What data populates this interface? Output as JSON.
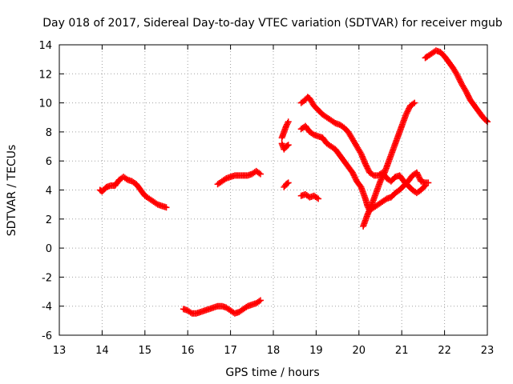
{
  "chart_data": {
    "type": "scatter",
    "title": "Day 018 of 2017, Sidereal Day-to-day VTEC variation (SDTVAR) for receiver mgub",
    "xlabel": "GPS time / hours",
    "ylabel": "SDTVAR / TECUs",
    "xlim": [
      13,
      23
    ],
    "ylim": [
      -6,
      14
    ],
    "xticks": [
      "13",
      "14",
      "15",
      "16",
      "17",
      "18",
      "19",
      "20",
      "21",
      "22",
      "23"
    ],
    "yticks": [
      "-6",
      "-4",
      "-2",
      "0",
      "2",
      "4",
      "6",
      "8",
      "10",
      "12",
      "14"
    ],
    "grid": "dotted",
    "marker": "+",
    "color": "#ff0000",
    "series": [
      {
        "points": [
          [
            13.95,
            4.0
          ],
          [
            14.0,
            3.9
          ],
          [
            14.1,
            4.2
          ],
          [
            14.2,
            4.3
          ],
          [
            14.3,
            4.3
          ],
          [
            14.4,
            4.7
          ],
          [
            14.5,
            4.9
          ],
          [
            14.6,
            4.7
          ],
          [
            14.7,
            4.6
          ],
          [
            14.8,
            4.4
          ],
          [
            14.9,
            4.0
          ],
          [
            15.0,
            3.6
          ],
          [
            15.1,
            3.4
          ],
          [
            15.2,
            3.2
          ],
          [
            15.3,
            3.0
          ],
          [
            15.4,
            2.9
          ],
          [
            15.5,
            2.8
          ]
        ]
      },
      {
        "points": [
          [
            15.9,
            -4.2
          ],
          [
            16.0,
            -4.3
          ],
          [
            16.1,
            -4.5
          ],
          [
            16.2,
            -4.5
          ],
          [
            16.3,
            -4.4
          ],
          [
            16.4,
            -4.3
          ],
          [
            16.5,
            -4.2
          ],
          [
            16.6,
            -4.1
          ],
          [
            16.7,
            -4.0
          ],
          [
            16.8,
            -4.0
          ],
          [
            16.9,
            -4.1
          ],
          [
            17.0,
            -4.3
          ],
          [
            17.1,
            -4.5
          ],
          [
            17.2,
            -4.4
          ],
          [
            17.3,
            -4.2
          ],
          [
            17.4,
            -4.0
          ],
          [
            17.5,
            -3.9
          ],
          [
            17.6,
            -3.8
          ],
          [
            17.7,
            -3.6
          ]
        ]
      },
      {
        "points": [
          [
            16.7,
            4.4
          ],
          [
            16.8,
            4.6
          ],
          [
            16.9,
            4.8
          ],
          [
            17.0,
            4.9
          ],
          [
            17.1,
            5.0
          ],
          [
            17.2,
            5.0
          ],
          [
            17.3,
            5.0
          ],
          [
            17.4,
            5.0
          ],
          [
            17.5,
            5.1
          ],
          [
            17.6,
            5.3
          ],
          [
            17.7,
            5.1
          ]
        ]
      },
      {
        "points": [
          [
            18.2,
            7.2
          ],
          [
            18.25,
            6.8
          ],
          [
            18.3,
            7.0
          ],
          [
            18.35,
            7.1
          ]
        ]
      },
      {
        "points": [
          [
            18.2,
            7.6
          ],
          [
            18.25,
            8.0
          ],
          [
            18.3,
            8.4
          ],
          [
            18.35,
            8.7
          ]
        ]
      },
      {
        "points": [
          [
            18.25,
            4.2
          ],
          [
            18.3,
            4.4
          ],
          [
            18.35,
            4.5
          ]
        ]
      },
      {
        "points": [
          [
            18.65,
            3.6
          ],
          [
            18.75,
            3.7
          ],
          [
            18.85,
            3.5
          ],
          [
            18.95,
            3.6
          ],
          [
            19.05,
            3.4
          ]
        ]
      },
      {
        "points": [
          [
            18.65,
            8.2
          ],
          [
            18.75,
            8.4
          ],
          [
            18.85,
            8.0
          ],
          [
            18.95,
            7.8
          ],
          [
            19.05,
            7.7
          ],
          [
            19.15,
            7.6
          ],
          [
            19.25,
            7.2
          ],
          [
            19.35,
            7.0
          ],
          [
            19.45,
            6.8
          ],
          [
            19.55,
            6.4
          ],
          [
            19.65,
            6.0
          ],
          [
            19.75,
            5.6
          ],
          [
            19.85,
            5.2
          ],
          [
            19.95,
            4.6
          ],
          [
            20.05,
            4.2
          ],
          [
            20.15,
            3.4
          ],
          [
            20.2,
            2.9
          ],
          [
            20.25,
            2.6
          ],
          [
            20.35,
            2.8
          ],
          [
            20.45,
            3.0
          ],
          [
            20.55,
            3.2
          ],
          [
            20.65,
            3.4
          ],
          [
            20.75,
            3.5
          ],
          [
            20.85,
            3.8
          ],
          [
            20.95,
            4.0
          ],
          [
            21.05,
            4.3
          ],
          [
            21.15,
            4.6
          ],
          [
            21.25,
            5.0
          ],
          [
            21.35,
            5.2
          ],
          [
            21.45,
            4.6
          ],
          [
            21.55,
            4.5
          ],
          [
            21.62,
            4.5
          ]
        ]
      },
      {
        "points": [
          [
            18.65,
            10.0
          ],
          [
            18.75,
            10.2
          ],
          [
            18.8,
            10.4
          ],
          [
            18.85,
            10.3
          ],
          [
            18.95,
            9.8
          ],
          [
            19.05,
            9.5
          ],
          [
            19.15,
            9.2
          ],
          [
            19.25,
            9.0
          ],
          [
            19.35,
            8.8
          ],
          [
            19.45,
            8.6
          ],
          [
            19.55,
            8.5
          ],
          [
            19.65,
            8.3
          ],
          [
            19.75,
            8.0
          ],
          [
            19.85,
            7.5
          ],
          [
            19.95,
            7.0
          ],
          [
            20.05,
            6.5
          ],
          [
            20.15,
            5.8
          ],
          [
            20.25,
            5.2
          ],
          [
            20.35,
            5.0
          ],
          [
            20.45,
            5.0
          ],
          [
            20.55,
            5.2
          ],
          [
            20.65,
            4.8
          ],
          [
            20.75,
            4.6
          ],
          [
            20.85,
            4.9
          ],
          [
            20.95,
            5.0
          ],
          [
            21.05,
            4.6
          ],
          [
            21.15,
            4.3
          ],
          [
            21.25,
            4.0
          ],
          [
            21.35,
            3.8
          ],
          [
            21.45,
            4.0
          ],
          [
            21.55,
            4.3
          ]
        ]
      },
      {
        "points": [
          [
            20.1,
            1.5
          ],
          [
            20.2,
            2.3
          ],
          [
            20.3,
            3.0
          ],
          [
            20.4,
            3.8
          ],
          [
            20.5,
            4.6
          ],
          [
            20.6,
            5.2
          ],
          [
            20.7,
            6.0
          ],
          [
            20.8,
            6.8
          ],
          [
            20.9,
            7.6
          ],
          [
            21.0,
            8.4
          ],
          [
            21.1,
            9.2
          ],
          [
            21.2,
            9.8
          ],
          [
            21.3,
            10.0
          ]
        ]
      },
      {
        "points": [
          [
            21.55,
            13.1
          ],
          [
            21.6,
            13.2
          ],
          [
            21.7,
            13.4
          ],
          [
            21.8,
            13.6
          ],
          [
            21.9,
            13.5
          ],
          [
            22.0,
            13.2
          ],
          [
            22.1,
            12.8
          ],
          [
            22.2,
            12.4
          ],
          [
            22.3,
            11.9
          ],
          [
            22.4,
            11.3
          ],
          [
            22.5,
            10.8
          ],
          [
            22.6,
            10.2
          ],
          [
            22.7,
            9.8
          ],
          [
            22.8,
            9.4
          ],
          [
            22.9,
            9.0
          ],
          [
            23.0,
            8.7
          ]
        ]
      }
    ]
  }
}
